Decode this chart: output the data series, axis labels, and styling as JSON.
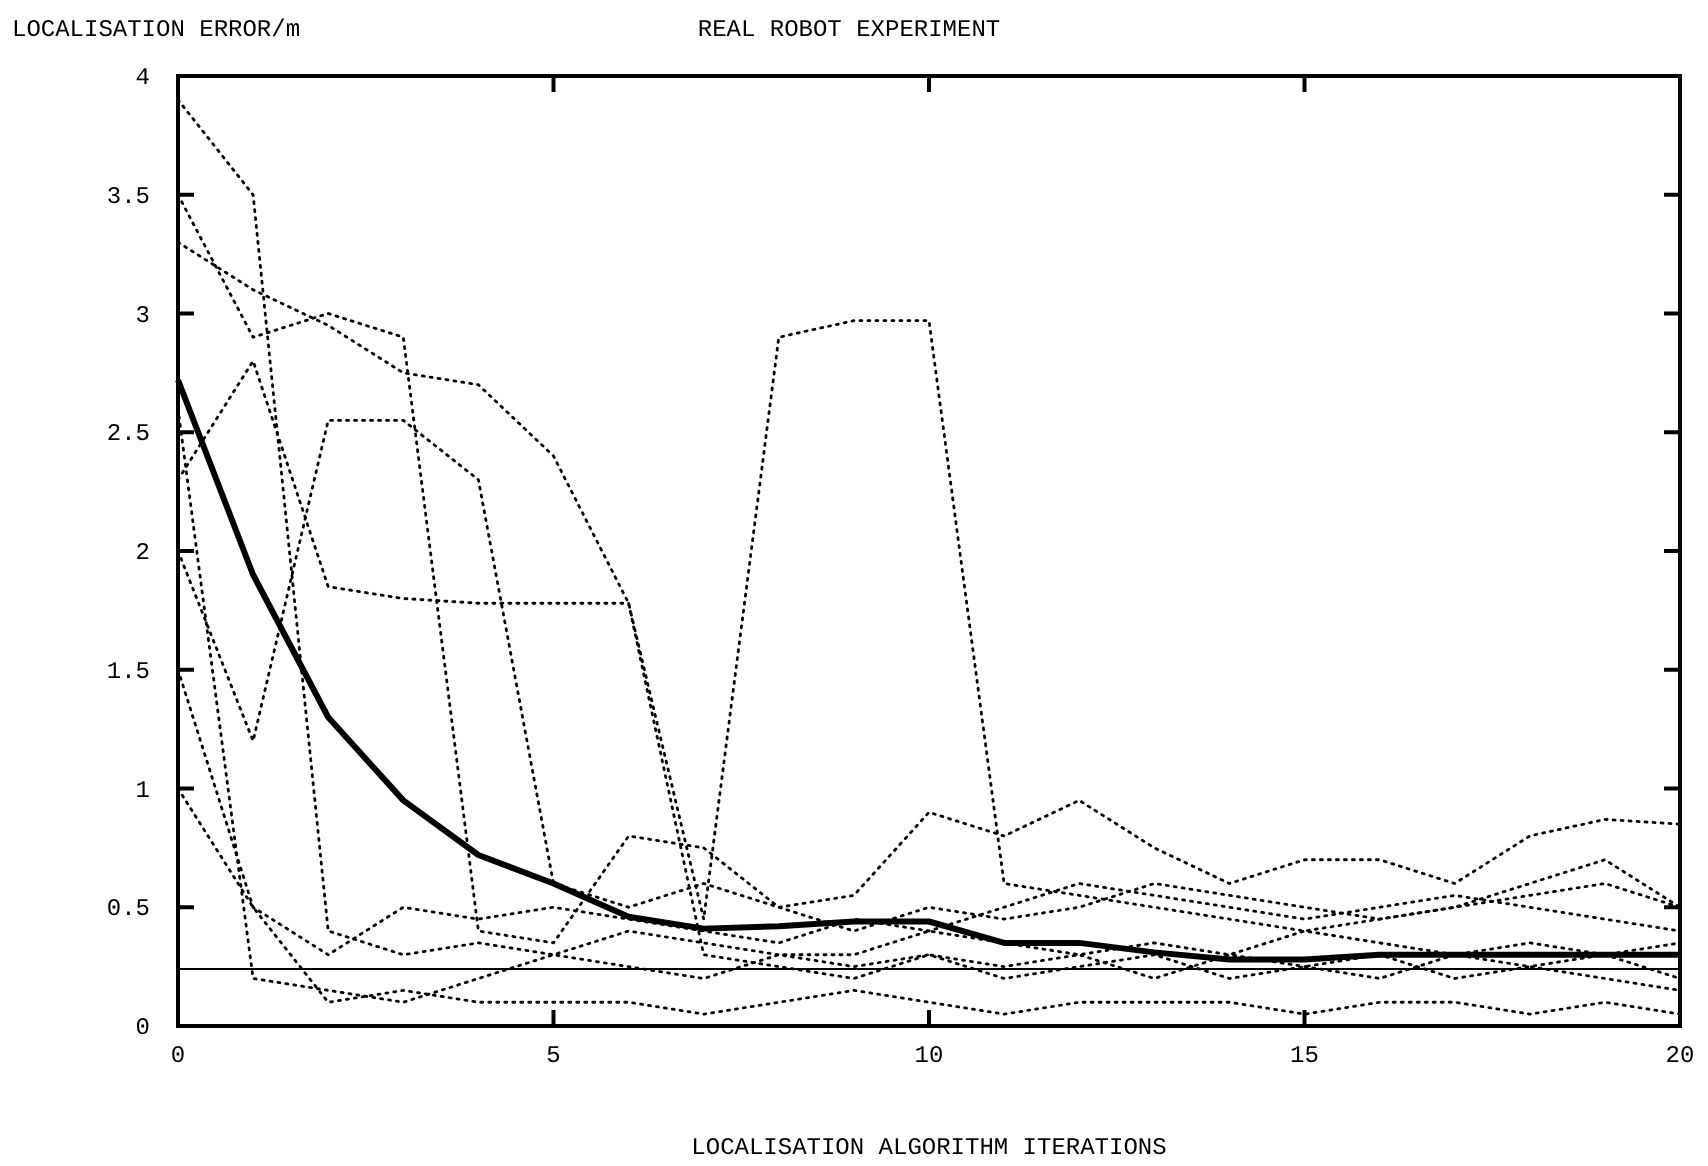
{
  "chart_data": {
    "type": "line",
    "title": "REAL ROBOT EXPERIMENT",
    "xlabel": "LOCALISATION ALGORITHM ITERATIONS",
    "ylabel": "LOCALISATION ERROR/m",
    "x": [
      0,
      1,
      2,
      3,
      4,
      5,
      6,
      7,
      8,
      9,
      10,
      11,
      12,
      13,
      14,
      15,
      16,
      17,
      18,
      19,
      20
    ],
    "xlim": [
      0,
      20
    ],
    "xticks": [
      0,
      5,
      10,
      15,
      20
    ],
    "ylim": [
      0,
      4
    ],
    "yticks": [
      0,
      0.5,
      1,
      1.5,
      2,
      2.5,
      3,
      3.5,
      4
    ],
    "grid": false,
    "marker": "none",
    "series": [
      {
        "color": "#000000",
        "line_style": "dotted",
        "values": [
          2.6,
          0.2,
          0.15,
          0.1,
          0.2,
          0.3,
          0.25,
          0.2,
          0.3,
          0.25,
          0.3,
          0.2,
          0.25,
          0.3,
          0.2,
          0.25,
          0.3,
          0.2,
          0.25,
          0.3,
          0.2
        ]
      },
      {
        "color": "#000000",
        "line_style": "dotted",
        "values": [
          3.9,
          3.5,
          0.4,
          0.3,
          0.35,
          0.3,
          0.4,
          0.35,
          0.3,
          0.3,
          0.4,
          0.35,
          0.3,
          0.35,
          0.3,
          0.4,
          0.35,
          0.3,
          0.35,
          0.3,
          0.35
        ]
      },
      {
        "color": "#000000",
        "line_style": "dotted",
        "values": [
          3.3,
          3.1,
          2.95,
          2.75,
          2.7,
          2.4,
          1.78,
          0.45,
          2.9,
          2.97,
          2.97,
          0.6,
          0.55,
          0.5,
          0.45,
          0.4,
          0.45,
          0.5,
          0.6,
          0.7,
          0.5
        ]
      },
      {
        "color": "#000000",
        "line_style": "dotted",
        "values": [
          2.0,
          1.2,
          2.55,
          2.55,
          2.3,
          0.6,
          0.5,
          0.6,
          0.5,
          0.55,
          0.9,
          0.8,
          0.95,
          0.75,
          0.6,
          0.7,
          0.7,
          0.6,
          0.8,
          0.87,
          0.85
        ]
      },
      {
        "color": "#000000",
        "line_style": "dotted",
        "values": [
          3.5,
          2.9,
          3.0,
          2.9,
          0.4,
          0.35,
          0.8,
          0.75,
          0.5,
          0.4,
          0.5,
          0.45,
          0.5,
          0.6,
          0.55,
          0.5,
          0.45,
          0.5,
          0.55,
          0.6,
          0.5
        ]
      },
      {
        "color": "#000000",
        "line_style": "dotted",
        "values": [
          1.5,
          0.5,
          0.3,
          0.5,
          0.45,
          0.5,
          0.45,
          0.4,
          0.35,
          0.45,
          0.4,
          0.5,
          0.6,
          0.55,
          0.5,
          0.45,
          0.5,
          0.55,
          0.5,
          0.45,
          0.4
        ]
      },
      {
        "color": "#000000",
        "line_style": "dotted",
        "values": [
          2.3,
          2.8,
          1.85,
          1.8,
          1.78,
          1.78,
          1.78,
          0.3,
          0.25,
          0.2,
          0.3,
          0.25,
          0.3,
          0.2,
          0.3,
          0.25,
          0.2,
          0.3,
          0.25,
          0.2,
          0.15
        ]
      },
      {
        "color": "#000000",
        "line_style": "dotted",
        "values": [
          1.0,
          0.5,
          0.1,
          0.15,
          0.1,
          0.1,
          0.1,
          0.05,
          0.1,
          0.15,
          0.1,
          0.05,
          0.1,
          0.1,
          0.1,
          0.05,
          0.1,
          0.1,
          0.05,
          0.1,
          0.05
        ]
      },
      {
        "color": "#000000",
        "line_style": "solid",
        "values": [
          2.72,
          1.9,
          1.3,
          0.95,
          0.72,
          0.6,
          0.46,
          0.41,
          0.42,
          0.44,
          0.44,
          0.35,
          0.35,
          0.31,
          0.28,
          0.28,
          0.3,
          0.3,
          0.3,
          0.3,
          0.3
        ]
      }
    ],
    "ref_lines": [
      {
        "axis": "y",
        "value": 0.24,
        "color": "#000000",
        "line_style": "solid"
      }
    ]
  }
}
